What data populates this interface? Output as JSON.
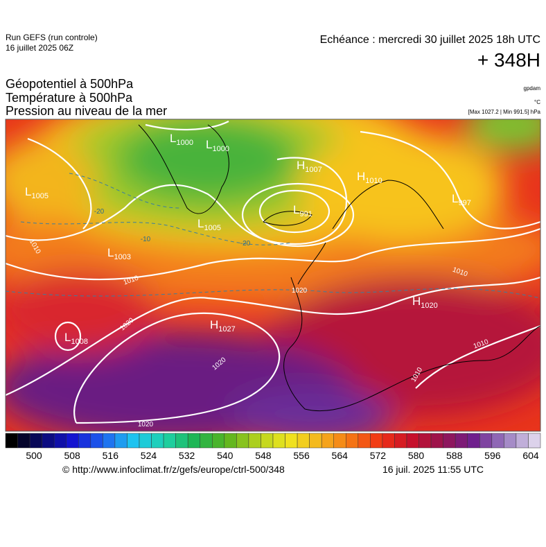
{
  "header": {
    "run": "Run GEFS (run controle)",
    "run_date": "16 juillet 2025 06Z",
    "valid": "Echéance : mercredi 30 juillet 2025 18h UTC",
    "lead": "+ 348H",
    "fields": [
      "Géopotentiel à 500hPa",
      "Température à 500hPa",
      "Pression au niveau de la mer"
    ],
    "units": [
      "gpdam",
      "°C",
      "[Max 1027.2 | Min 991.5] hPa"
    ]
  },
  "map": {
    "centers": [
      {
        "letter": "L",
        "value": 1005
      },
      {
        "letter": "L",
        "value": 1000
      },
      {
        "letter": "L",
        "value": 1000
      },
      {
        "letter": "H",
        "value": 1007
      },
      {
        "letter": "L",
        "value": 991
      },
      {
        "letter": "H",
        "value": 1010
      },
      {
        "letter": "L",
        "value": 997
      },
      {
        "letter": "L",
        "value": 1005
      },
      {
        "letter": "L",
        "value": 1003
      },
      {
        "letter": "H",
        "value": 1027
      },
      {
        "letter": "L",
        "value": 1008
      },
      {
        "letter": "H",
        "value": 1020
      }
    ],
    "isobar_labels": [
      "1010",
      "1010",
      "1020",
      "1020",
      "1020",
      "1020",
      "1010",
      "1010",
      "1010"
    ],
    "temperature_labels": [
      "-20",
      "-10",
      "-20"
    ]
  },
  "colorbar": {
    "ticks": [
      500,
      508,
      516,
      524,
      532,
      540,
      548,
      556,
      564,
      572,
      580,
      588,
      596,
      604
    ]
  },
  "footer": {
    "source": "© http://www.infoclimat.fr/z/gefs/europe/ctrl-500/348",
    "issued": "16 juil. 2025 11:55 UTC"
  }
}
